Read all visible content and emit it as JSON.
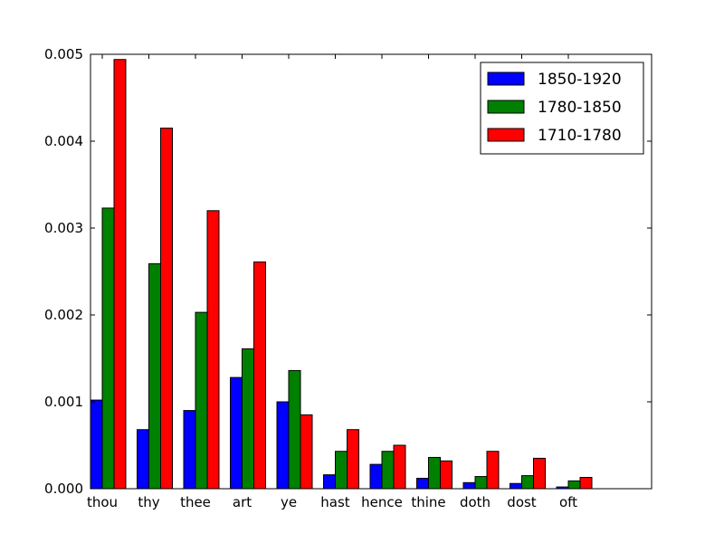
{
  "chart_data": {
    "type": "bar",
    "title": "",
    "xlabel": "",
    "ylabel": "",
    "categories": [
      "thou",
      "thy",
      "thee",
      "art",
      "ye",
      "hast",
      "hence",
      "thine",
      "doth",
      "dost",
      "oft"
    ],
    "series": [
      {
        "name": "1850-1920",
        "color": "#0000ff",
        "values": [
          0.00102,
          0.00068,
          0.0009,
          0.00128,
          0.001,
          0.00016,
          0.00028,
          0.00012,
          7e-05,
          6e-05,
          2e-05
        ]
      },
      {
        "name": "1780-1850",
        "color": "#008000",
        "values": [
          0.00323,
          0.00259,
          0.00203,
          0.00161,
          0.00136,
          0.00043,
          0.00043,
          0.00036,
          0.00014,
          0.00015,
          9e-05
        ]
      },
      {
        "name": "1710-1780",
        "color": "#ff0000",
        "values": [
          0.00494,
          0.00415,
          0.0032,
          0.00261,
          0.00085,
          0.00068,
          0.0005,
          0.00032,
          0.00043,
          0.00035,
          0.00013
        ]
      }
    ],
    "ylim": [
      0,
      0.005
    ],
    "yticks": [
      "0.000",
      "0.001",
      "0.002",
      "0.003",
      "0.004",
      "0.005"
    ],
    "legend_position": "top-right",
    "grid": false
  }
}
